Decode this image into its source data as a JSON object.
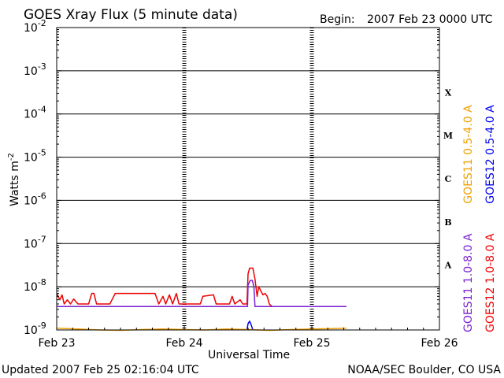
{
  "header": {
    "title": "GOES Xray Flux (5 minute data)",
    "begin_label": "Begin:",
    "begin_value": "2007 Feb 23 0000 UTC"
  },
  "footer": {
    "updated": "Updated 2007 Feb 25 02:16:04 UTC",
    "credit": "NOAA/SEC Boulder, CO USA"
  },
  "colors": {
    "background": "#ffffff",
    "axes": "#000000",
    "goes11_long": "#7a1fd1",
    "goes12_long": "#ee0000",
    "goes11_short": "#f0a000",
    "goes12_short": "#0000ee"
  },
  "chart_data": {
    "type": "line",
    "title": "GOES Xray Flux (5 minute data)",
    "xlabel": "Universal Time",
    "ylabel_base": "Watts m",
    "ylabel_exp": "-2",
    "ylim": [
      1e-09,
      0.01
    ],
    "yscale": "log",
    "xlim": [
      0,
      72
    ],
    "x_unit": "hours since 2007 Feb 23 0000 UTC",
    "x_ticks": [
      {
        "x": 0,
        "label": "Feb 23"
      },
      {
        "x": 24,
        "label": "Feb 24"
      },
      {
        "x": 48,
        "label": "Feb 25"
      },
      {
        "x": 72,
        "label": "Feb 26"
      }
    ],
    "y_ticks": [
      {
        "exp": -2,
        "label": "10",
        "sup": "-2"
      },
      {
        "exp": -3,
        "label": "10",
        "sup": "-3"
      },
      {
        "exp": -4,
        "label": "10",
        "sup": "-4"
      },
      {
        "exp": -5,
        "label": "10",
        "sup": "-5"
      },
      {
        "exp": -6,
        "label": "10",
        "sup": "-6"
      },
      {
        "exp": -7,
        "label": "10",
        "sup": "-7"
      },
      {
        "exp": -8,
        "label": "10",
        "sup": "-8"
      },
      {
        "exp": -9,
        "label": "10",
        "sup": "-9"
      }
    ],
    "flare_classes": [
      "X",
      "M",
      "C",
      "B",
      "A"
    ],
    "legend": {
      "right_outer": [
        {
          "name": "GOES12 1.0-8.0 A",
          "color": "#ee0000"
        },
        {
          "name": "GOES12 0.5-4.0 A",
          "color": "#0000ee"
        }
      ],
      "right_inner": [
        {
          "name": "GOES11 1.0-8.0 A",
          "color": "#7a1fd1"
        },
        {
          "name": "GOES11 0.5-4.0 A",
          "color": "#f0a000"
        }
      ]
    },
    "series": [
      {
        "name": "GOES12 1.0-8.0 A",
        "color": "#ee0000",
        "points": [
          [
            0,
            7e-09
          ],
          [
            0.6,
            5e-09
          ],
          [
            1.0,
            6.5e-09
          ],
          [
            1.4,
            4e-09
          ],
          [
            2.0,
            5e-09
          ],
          [
            2.6,
            4e-09
          ],
          [
            3.2,
            5.2e-09
          ],
          [
            4.0,
            4e-09
          ],
          [
            5.0,
            4e-09
          ],
          [
            6.0,
            4e-09
          ],
          [
            6.6,
            7e-09
          ],
          [
            7.0,
            7e-09
          ],
          [
            7.5,
            4e-09
          ],
          [
            10.0,
            4e-09
          ],
          [
            11.0,
            7e-09
          ],
          [
            18.5,
            7e-09
          ],
          [
            19.2,
            4e-09
          ],
          [
            20.0,
            6e-09
          ],
          [
            20.5,
            4e-09
          ],
          [
            21.2,
            6.5e-09
          ],
          [
            21.8,
            4e-09
          ],
          [
            22.5,
            7e-09
          ],
          [
            23.0,
            4e-09
          ],
          [
            27.0,
            4e-09
          ],
          [
            27.5,
            6e-09
          ],
          [
            29.5,
            6.5e-09
          ],
          [
            30.0,
            4e-09
          ],
          [
            32.5,
            4e-09
          ],
          [
            33.0,
            6e-09
          ],
          [
            33.5,
            4e-09
          ],
          [
            34.5,
            5e-09
          ],
          [
            35.0,
            4e-09
          ],
          [
            35.8,
            4e-09
          ],
          [
            36.0,
            2e-08
          ],
          [
            36.3,
            2.7e-08
          ],
          [
            36.9,
            2.7e-08
          ],
          [
            37.3,
            1.5e-08
          ],
          [
            37.7,
            6e-09
          ],
          [
            38.0,
            1e-08
          ],
          [
            38.4,
            8e-09
          ],
          [
            38.8,
            6.5e-09
          ],
          [
            39.2,
            7e-09
          ],
          [
            39.6,
            6e-09
          ],
          [
            40.0,
            4e-09
          ],
          [
            40.5,
            3.5e-09
          ],
          [
            54.5,
            3.5e-09
          ]
        ]
      },
      {
        "name": "GOES11 1.0-8.0 A",
        "color": "#7a1fd1",
        "points": [
          [
            0,
            3.5e-09
          ],
          [
            35.9,
            3.5e-09
          ],
          [
            36.0,
            1.1e-08
          ],
          [
            36.4,
            1.4e-08
          ],
          [
            36.8,
            1.4e-08
          ],
          [
            37.1,
            1e-08
          ],
          [
            37.3,
            3.5e-09
          ],
          [
            54.5,
            3.5e-09
          ]
        ]
      },
      {
        "name": "GOES12 0.5-4.0 A",
        "color": "#0000ee",
        "points": [
          [
            35.8,
            1e-09
          ],
          [
            36.0,
            1.4e-09
          ],
          [
            36.3,
            1.6e-09
          ],
          [
            36.6,
            1.3e-09
          ],
          [
            36.9,
            1e-09
          ]
        ]
      },
      {
        "name": "GOES11 0.5-4.0 A",
        "color": "#f0a000",
        "points": [
          [
            0,
            1.1e-09
          ],
          [
            4,
            1.05e-09
          ],
          [
            8,
            1e-09
          ],
          [
            12,
            9.8e-10
          ],
          [
            16,
            1.02e-09
          ],
          [
            20,
            1.05e-09
          ],
          [
            24,
            1.02e-09
          ],
          [
            28,
            1e-09
          ],
          [
            32,
            1.05e-09
          ],
          [
            36,
            1.02e-09
          ],
          [
            40,
            9.8e-10
          ],
          [
            44,
            1.02e-09
          ],
          [
            48,
            1.05e-09
          ],
          [
            52,
            1.08e-09
          ],
          [
            54.5,
            1.1e-09
          ]
        ]
      }
    ]
  }
}
